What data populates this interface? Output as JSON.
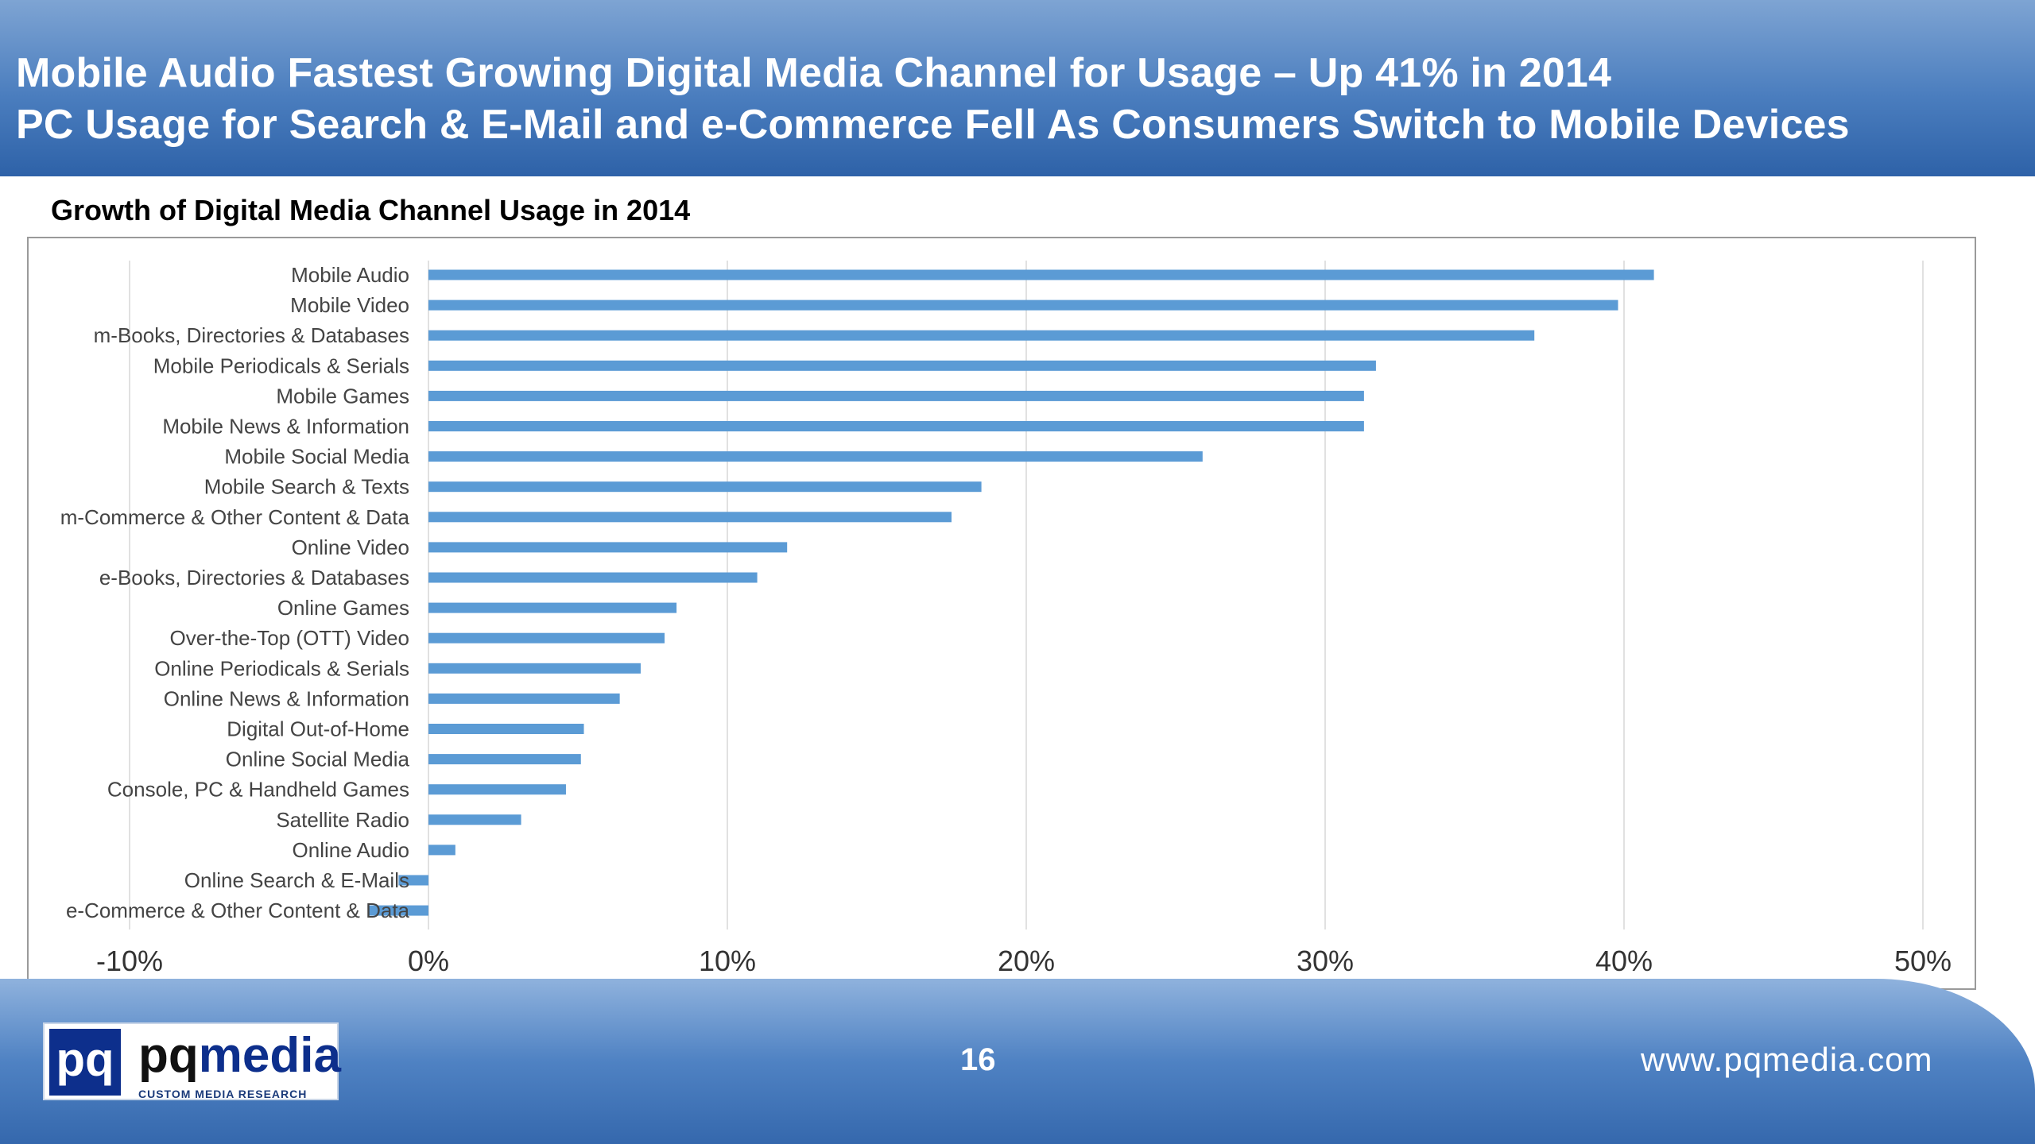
{
  "header": {
    "line1": "Mobile Audio Fastest Growing Digital Media Channel for Usage – Up 41% in 2014",
    "line2": "PC Usage for Search & E-Mail and e-Commerce Fell As Consumers Switch to Mobile Devices"
  },
  "chart_data": {
    "type": "bar",
    "orientation": "horizontal",
    "title": "Growth of Digital Media Channel Usage in 2014",
    "categories": [
      "Mobile Audio",
      "Mobile Video",
      "m-Books, Directories & Databases",
      "Mobile Periodicals & Serials",
      "Mobile Games",
      "Mobile News & Information",
      "Mobile Social Media",
      "Mobile Search & Texts",
      "m-Commerce & Other Content & Data",
      "Online Video",
      "e-Books, Directories & Databases",
      "Online Games",
      "Over-the-Top (OTT) Video",
      "Online Periodicals & Serials",
      "Online News & Information",
      "Digital Out-of-Home",
      "Online Social Media",
      "Console, PC & Handheld Games",
      "Satellite Radio",
      "Online Audio",
      "Online Search & E-Mails",
      "e-Commerce & Other Content & Data"
    ],
    "values": [
      41.0,
      39.8,
      37.0,
      31.7,
      31.3,
      31.3,
      25.9,
      18.5,
      17.5,
      12.0,
      11.0,
      8.3,
      7.9,
      7.1,
      6.4,
      5.2,
      5.1,
      4.6,
      3.1,
      0.9,
      -1.0,
      -2.0
    ],
    "xlim": [
      -10,
      50
    ],
    "xticks": [
      "-10%",
      "0%",
      "10%",
      "20%",
      "30%",
      "40%",
      "50%"
    ],
    "grid": true,
    "bar_color": "#5b9bd5"
  },
  "footer": {
    "logo_mark": "pq",
    "logo_brand_pq": "pq",
    "logo_brand_media": "media",
    "logo_tagline": "CUSTOM MEDIA RESEARCH",
    "page_number": "16",
    "website": "www.pqmedia.com"
  }
}
